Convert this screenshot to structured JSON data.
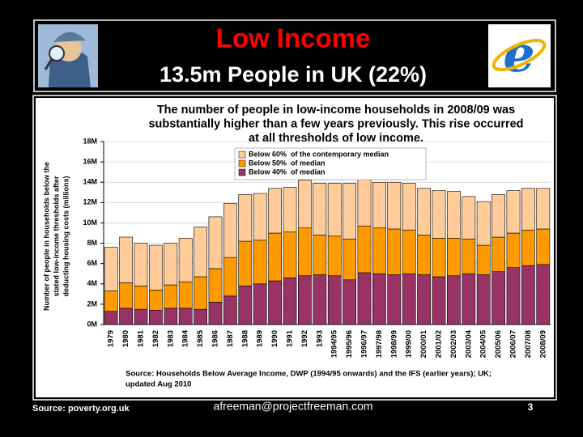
{
  "header": {
    "title": "Low Income",
    "subtitle": "13.5m People in UK (22%)"
  },
  "footer": {
    "source": "Source: poverty.org.uk",
    "email": "afreeman@projectfreeman.com",
    "page_number": "3"
  },
  "chart_data": {
    "type": "bar",
    "stacked": true,
    "title": [
      "The number of people in low-income households in 2008/09 was",
      "substantially higher than a few years previously.  This rise occurred",
      "at all thresholds of low income."
    ],
    "ylabel": [
      "Number of people in households below the",
      "stated low-income thresholds after",
      "deducting housing costs (millions)"
    ],
    "source": [
      "Source: Households Below Average Income, DWP (1994/95 onwards) and the IFS (earlier years); UK;",
      "updated Aug 2010"
    ],
    "categories": [
      "1979",
      "1980",
      "1981",
      "1982",
      "1983",
      "1984",
      "1985",
      "1986",
      "1987",
      "1988",
      "1989",
      "1990",
      "1991",
      "1992",
      "1993",
      "1994/95",
      "1995/96",
      "1996/97",
      "1997/98",
      "1998/99",
      "1999/00",
      "2000/01",
      "2001/02",
      "2002/03",
      "2003/04",
      "2004/05",
      "2005/06",
      "2006/07",
      "2007/08",
      "2008/09"
    ],
    "series": [
      {
        "name": "Below 40%  of median",
        "color": "#993366",
        "values": [
          1.3,
          1.6,
          1.5,
          1.4,
          1.6,
          1.6,
          1.5,
          2.2,
          2.8,
          3.8,
          4.0,
          4.3,
          4.6,
          4.8,
          4.9,
          4.8,
          4.4,
          5.1,
          5.0,
          4.9,
          5.0,
          4.9,
          4.7,
          4.8,
          5.0,
          4.9,
          5.2,
          5.6,
          5.8,
          5.9
        ]
      },
      {
        "name": "Below 50%  of median",
        "color": "#ff9900",
        "values": [
          2.0,
          2.5,
          2.3,
          2.0,
          2.3,
          2.6,
          3.2,
          3.3,
          3.8,
          4.4,
          4.3,
          4.7,
          4.5,
          4.7,
          3.9,
          3.9,
          4.0,
          4.6,
          4.5,
          4.5,
          4.3,
          3.9,
          3.8,
          3.7,
          3.4,
          2.9,
          3.4,
          3.4,
          3.5,
          3.5
        ]
      },
      {
        "name": "Below 60%  of the contemporary median",
        "color": "#ffcc99",
        "values": [
          4.3,
          4.5,
          4.2,
          4.4,
          4.1,
          4.3,
          4.9,
          5.1,
          5.3,
          4.6,
          4.6,
          4.4,
          4.4,
          4.7,
          5.1,
          5.2,
          5.5,
          4.8,
          4.5,
          4.6,
          4.6,
          4.6,
          4.7,
          4.6,
          4.2,
          4.3,
          4.2,
          4.2,
          4.1,
          4.0
        ]
      }
    ],
    "ylim": [
      0,
      18
    ],
    "yticks": [
      {
        "value": 0,
        "label": "0M"
      },
      {
        "value": 2,
        "label": "2M"
      },
      {
        "value": 4,
        "label": "4M"
      },
      {
        "value": 6,
        "label": "6M"
      },
      {
        "value": 8,
        "label": "8M"
      },
      {
        "value": 10,
        "label": "10M"
      },
      {
        "value": 12,
        "label": "12M"
      },
      {
        "value": 14,
        "label": "14M"
      },
      {
        "value": 16,
        "label": "16M"
      },
      {
        "value": 18,
        "label": "18M"
      }
    ],
    "grid": true
  }
}
